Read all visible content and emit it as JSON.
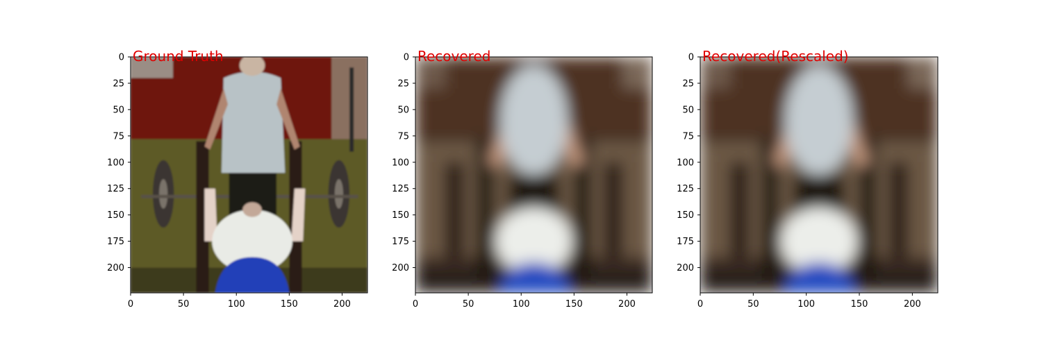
{
  "figure": {
    "panels": [
      {
        "id": "ground-truth",
        "title": "Ground Truth",
        "variant": "sharp",
        "xticks": [
          "0",
          "50",
          "100",
          "150",
          "200"
        ],
        "yticks": [
          "0",
          "25",
          "50",
          "75",
          "100",
          "125",
          "150",
          "175",
          "200"
        ]
      },
      {
        "id": "recovered",
        "title": "Recovered",
        "variant": "blurred",
        "xticks": [
          "0",
          "50",
          "100",
          "150",
          "200"
        ],
        "yticks": [
          "0",
          "25",
          "50",
          "75",
          "100",
          "125",
          "150",
          "175",
          "200"
        ]
      },
      {
        "id": "recovered-rescaled",
        "title": "Recovered(Rescaled)",
        "variant": "blurred",
        "xticks": [
          "0",
          "50",
          "100",
          "150",
          "200"
        ],
        "yticks": [
          "0",
          "25",
          "50",
          "75",
          "100",
          "125",
          "150",
          "175",
          "200"
        ]
      }
    ],
    "axis_range": [
      0,
      224
    ],
    "colors": {
      "title": "#e00000",
      "wall": "#6e1510",
      "floor": "#5d5a28",
      "shirt_gray": "#b8c2c6",
      "shirt_white": "#e9ebe6",
      "blue_shorts": "#2140b8",
      "plate": "#3a3430",
      "bench_dark": "#2a1e15"
    }
  }
}
